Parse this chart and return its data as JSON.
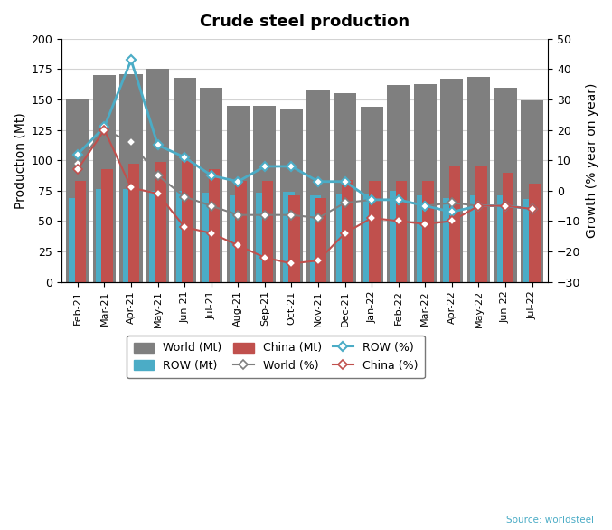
{
  "title": "Crude steel production",
  "ylabel_left": "Production (Mt)",
  "ylabel_right": "Growth (% year on year)",
  "categories": [
    "Feb-21",
    "Mar-21",
    "Apr-21",
    "May-21",
    "Jun-21",
    "Jul-21",
    "Aug-21",
    "Sep-21",
    "Oct-21",
    "Nov-21",
    "Dec-21",
    "Jan-22",
    "Feb-22",
    "Mar-22",
    "Apr-22",
    "May-22",
    "Jun-22",
    "Jul-22"
  ],
  "world_mt": [
    151,
    170,
    171,
    175,
    168,
    160,
    145,
    145,
    142,
    158,
    155,
    144,
    162,
    163,
    167,
    169,
    160,
    149
  ],
  "row_mt": [
    69,
    76,
    76,
    75,
    75,
    73,
    71,
    73,
    74,
    71,
    72,
    72,
    75,
    71,
    69,
    71,
    71,
    68
  ],
  "china_mt": [
    83,
    93,
    97,
    99,
    100,
    93,
    83,
    83,
    71,
    69,
    84,
    83,
    83,
    83,
    96,
    96,
    90,
    81
  ],
  "world_pct": [
    9,
    20,
    16,
    5,
    -2,
    -5,
    -8,
    -8,
    -8,
    -9,
    -4,
    -3,
    -3,
    -5,
    -4,
    -5,
    -5,
    -6
  ],
  "row_pct": [
    12,
    21,
    43,
    15,
    11,
    5,
    3,
    8,
    8,
    3,
    3,
    -3,
    -3,
    -5,
    -7,
    -5,
    -5,
    -6
  ],
  "china_pct": [
    7,
    20,
    1,
    -1,
    -12,
    -14,
    -18,
    -22,
    -24,
    -23,
    -14,
    -9,
    -10,
    -11,
    -10,
    -5,
    -5,
    -6
  ],
  "color_world": "#7f7f7f",
  "color_row": "#4bacc6",
  "color_china": "#c0504d",
  "ylim_left": [
    0,
    200
  ],
  "ylim_right": [
    -30,
    50
  ],
  "yticks_left": [
    0,
    25,
    50,
    75,
    100,
    125,
    150,
    175,
    200
  ],
  "yticks_right": [
    -30,
    -20,
    -10,
    0,
    10,
    20,
    30,
    40,
    50
  ],
  "source": "Source: worldsteel"
}
